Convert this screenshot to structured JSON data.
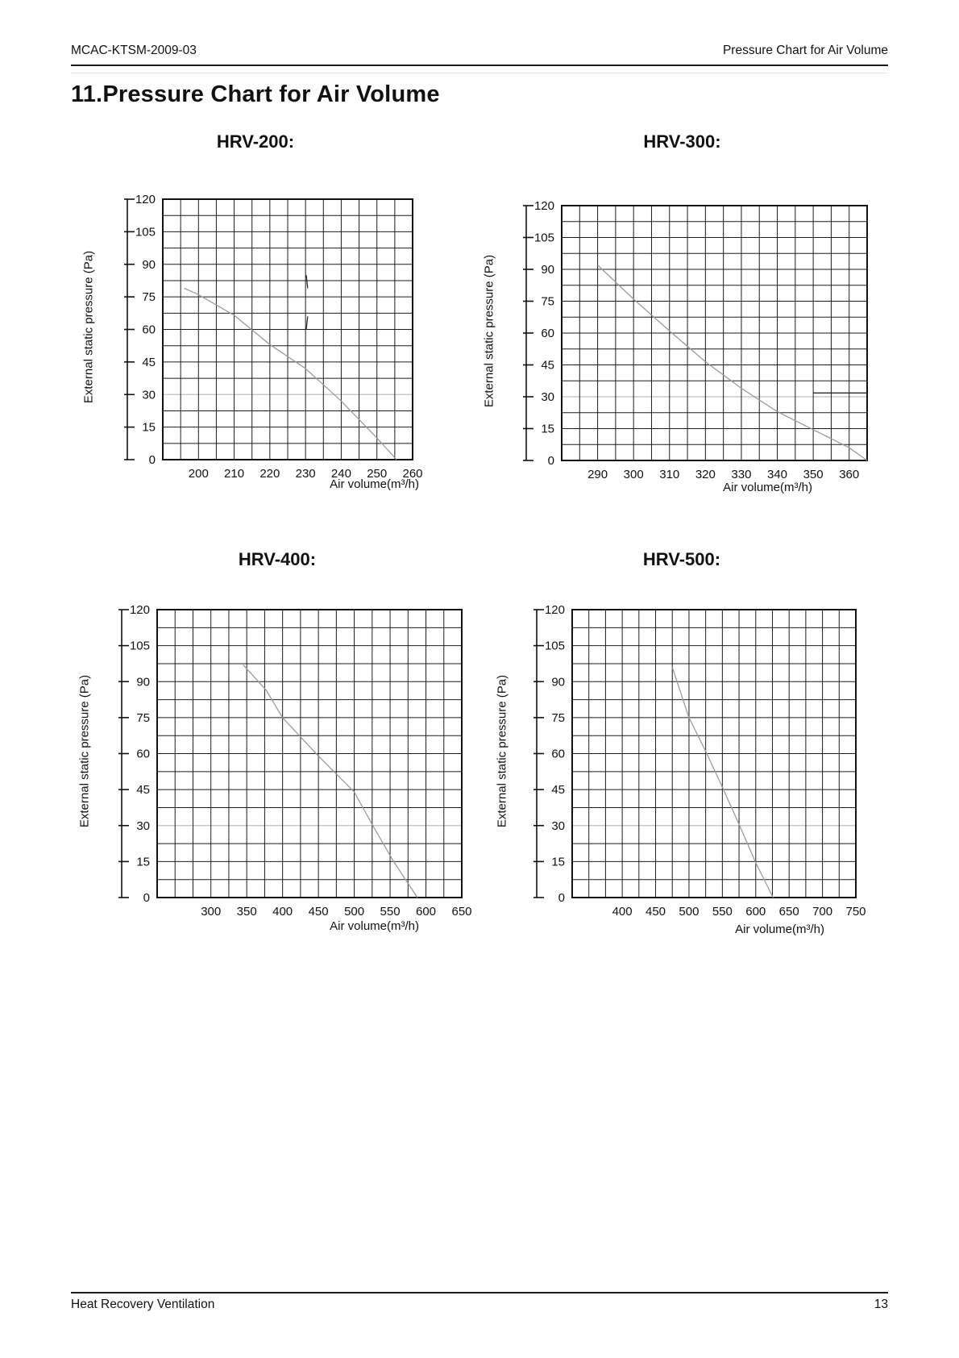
{
  "page": {
    "header": {
      "left": "MCAC-KTSM-2009-03",
      "right": "Pressure Chart for Air Volume"
    },
    "heading": "11.Pressure Chart for Air Volume",
    "footer": {
      "left": "Heat Recovery Ventilation",
      "page_number": "13"
    }
  },
  "colors": {
    "curve": "#9b9b9b",
    "reference_line": "#c8c8c8",
    "grid": "#1b1b1b"
  },
  "chart_data": [
    {
      "type": "line",
      "title": "HRV-200:",
      "xlabel": "Air volume(m³/h)",
      "ylabel": "External static pressure (Pa)",
      "xlim": [
        190,
        260
      ],
      "ylim": [
        0,
        120
      ],
      "x_minor_step": 5,
      "y_minor_step": 7.5,
      "x_ticks": [
        200,
        210,
        220,
        230,
        240,
        250,
        260
      ],
      "y_ticks": [
        0,
        15,
        30,
        45,
        60,
        75,
        90,
        105,
        120
      ],
      "grid": true,
      "reference_line_y": 30,
      "series": [
        {
          "name": "fan-curve",
          "points": [
            [
              196,
              79
            ],
            [
              200,
              76
            ],
            [
              210,
              66.5
            ],
            [
              220,
              53
            ],
            [
              230,
              42
            ],
            [
              240,
              27
            ],
            [
              250,
              10
            ],
            [
              255.5,
              0
            ]
          ]
        }
      ],
      "artifacts": [
        {
          "type": "segment",
          "points": [
            [
              230.2,
              85
            ],
            [
              230.6,
              79
            ]
          ]
        },
        {
          "type": "segment",
          "points": [
            [
              230.6,
              66
            ],
            [
              230.2,
              60
            ]
          ]
        }
      ]
    },
    {
      "type": "line",
      "title": "HRV-300:",
      "xlabel": "Air volume(m³/h)",
      "ylabel": "External static pressure (Pa)",
      "xlim": [
        280,
        365
      ],
      "ylim": [
        0,
        120
      ],
      "x_minor_step": 5,
      "y_minor_step": 7.5,
      "x_ticks": [
        290,
        300,
        310,
        320,
        330,
        340,
        350,
        360
      ],
      "y_ticks": [
        0,
        15,
        30,
        45,
        60,
        75,
        90,
        105,
        120
      ],
      "grid": true,
      "reference_line_y": 30,
      "series": [
        {
          "name": "fan-curve",
          "points": [
            [
              290,
              92
            ],
            [
              300,
              76
            ],
            [
              310,
              61
            ],
            [
              320,
              46.5
            ],
            [
              330,
              34
            ],
            [
              340,
              23
            ],
            [
              350,
              14.5
            ],
            [
              360,
              6
            ],
            [
              365,
              0
            ]
          ]
        }
      ],
      "artifacts": [
        {
          "type": "segment",
          "points": [
            [
              350,
              31.8
            ],
            [
              365,
              31.8
            ]
          ]
        }
      ]
    },
    {
      "type": "line",
      "title": "HRV-400:",
      "xlabel": "Air volume(m³/h)",
      "ylabel": "External static pressure (Pa)",
      "xlim": [
        225,
        650
      ],
      "ylim": [
        0,
        120
      ],
      "x_minor_step": 25,
      "y_minor_step": 7.5,
      "x_ticks": [
        300,
        350,
        400,
        450,
        500,
        550,
        600,
        650
      ],
      "y_ticks": [
        0,
        15,
        30,
        45,
        60,
        75,
        90,
        105,
        120
      ],
      "grid": true,
      "reference_line_y": 30,
      "series": [
        {
          "name": "fan-curve",
          "points": [
            [
              345,
              97
            ],
            [
              377,
              86.5
            ],
            [
              400,
              75
            ],
            [
              450,
              59
            ],
            [
              500,
              44
            ],
            [
              525,
              30.5
            ],
            [
              555,
              15
            ],
            [
              588,
              0
            ]
          ]
        }
      ],
      "artifacts": []
    },
    {
      "type": "line",
      "title": "HRV-500:",
      "xlabel": "Air volume(m³/h)",
      "ylabel": "External static pressure (Pa)",
      "xlim": [
        325,
        750
      ],
      "ylim": [
        0,
        120
      ],
      "x_minor_step": 25,
      "y_minor_step": 7.5,
      "x_ticks": [
        400,
        450,
        500,
        550,
        600,
        650,
        700,
        750
      ],
      "y_ticks": [
        0,
        15,
        30,
        45,
        60,
        75,
        90,
        105,
        120
      ],
      "grid": true,
      "reference_line_y": 30,
      "series": [
        {
          "name": "fan-curve",
          "points": [
            [
              475,
              96
            ],
            [
              500,
              75
            ],
            [
              525,
              61
            ],
            [
              550,
              46
            ],
            [
              575,
              30.5
            ],
            [
              600,
              14.5
            ],
            [
              626,
              0
            ]
          ]
        }
      ],
      "artifacts": []
    }
  ]
}
